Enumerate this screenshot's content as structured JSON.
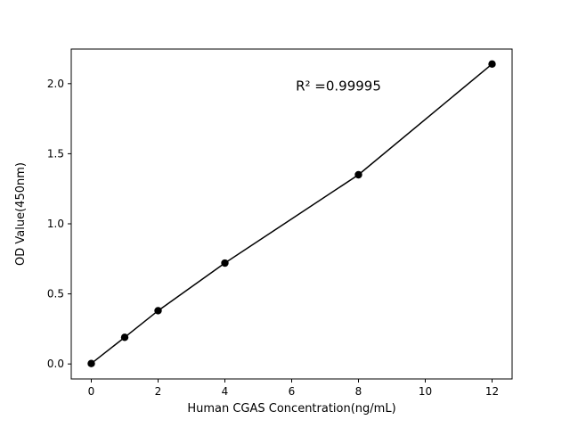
{
  "chart_data": {
    "type": "scatter",
    "x": [
      0,
      1,
      2,
      4,
      8,
      12
    ],
    "y": [
      0.003,
      0.19,
      0.38,
      0.72,
      1.35,
      2.14
    ],
    "line_through_points": true,
    "title": "",
    "xlabel": "Human CGAS Concentration(ng/mL)",
    "ylabel": "OD Value(450nm)",
    "xlim": [
      -0.6,
      12.6
    ],
    "ylim": [
      -0.107,
      2.247
    ],
    "xticks": [
      0,
      2,
      4,
      6,
      8,
      10,
      12
    ],
    "xtick_labels": [
      "0",
      "2",
      "4",
      "6",
      "8",
      "10",
      "12"
    ],
    "yticks": [
      0,
      0.5,
      1.0,
      1.5,
      2.0
    ],
    "ytick_labels": [
      "0.0",
      "0.5",
      "1.0",
      "1.5",
      "2.0"
    ],
    "annotation": {
      "text": "R² =0.99995",
      "x": 7.4,
      "y": 1.95
    },
    "marker_color": "#000000",
    "line_color": "#000000",
    "background_color": "#ffffff",
    "grid": false
  }
}
